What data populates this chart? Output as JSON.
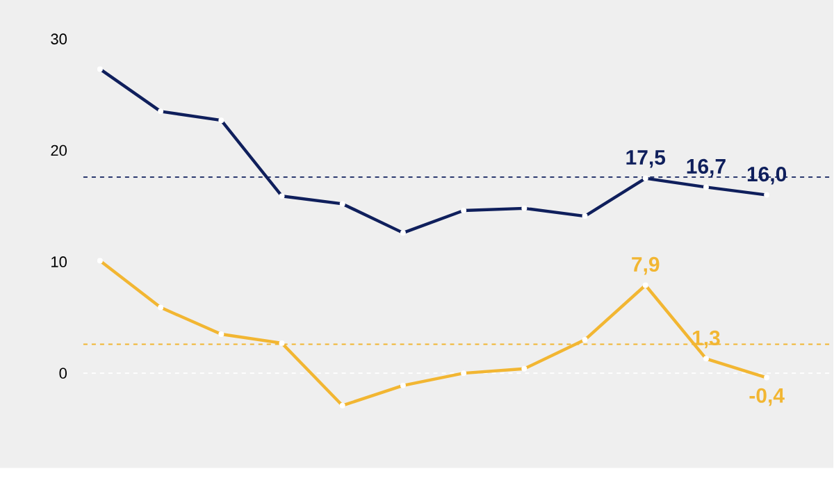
{
  "chart_data": {
    "type": "line",
    "categories": [
      null,
      null,
      null,
      null,
      null,
      null,
      null,
      null,
      null,
      null,
      null,
      null
    ],
    "series": [
      {
        "color": "#0f1f5c",
        "values": [
          27.3,
          23.5,
          22.7,
          15.9,
          15.2,
          12.6,
          14.6,
          14.8,
          14.1,
          17.5,
          16.7,
          16.0
        ],
        "value_labels": [
          null,
          null,
          null,
          null,
          null,
          null,
          null,
          null,
          null,
          "17,5",
          "16,7",
          "16,0"
        ]
      },
      {
        "color": "#f2b632",
        "values": [
          10.1,
          5.9,
          3.5,
          2.7,
          -2.9,
          -1.1,
          0.0,
          0.4,
          3.0,
          7.9,
          1.3,
          -0.4
        ],
        "value_labels": [
          null,
          null,
          null,
          null,
          null,
          null,
          null,
          null,
          null,
          "7,9",
          "1,3",
          "-0,4"
        ]
      }
    ],
    "ylim": [
      -8.5,
      33.5
    ],
    "yticks": [
      0,
      10,
      20,
      30
    ],
    "tick_labels": "y",
    "marker": "circle",
    "line_style": "solid",
    "ref_lines": [
      {
        "axis": "y",
        "value": 17.6,
        "color": "#0f1f5c",
        "line_style": "dashed"
      },
      {
        "axis": "y",
        "value": 2.6,
        "color": "#f2b632",
        "line_style": "dashed"
      },
      {
        "axis": "y",
        "value": 0,
        "color": "#ffffff",
        "line_style": "dashed"
      }
    ]
  }
}
